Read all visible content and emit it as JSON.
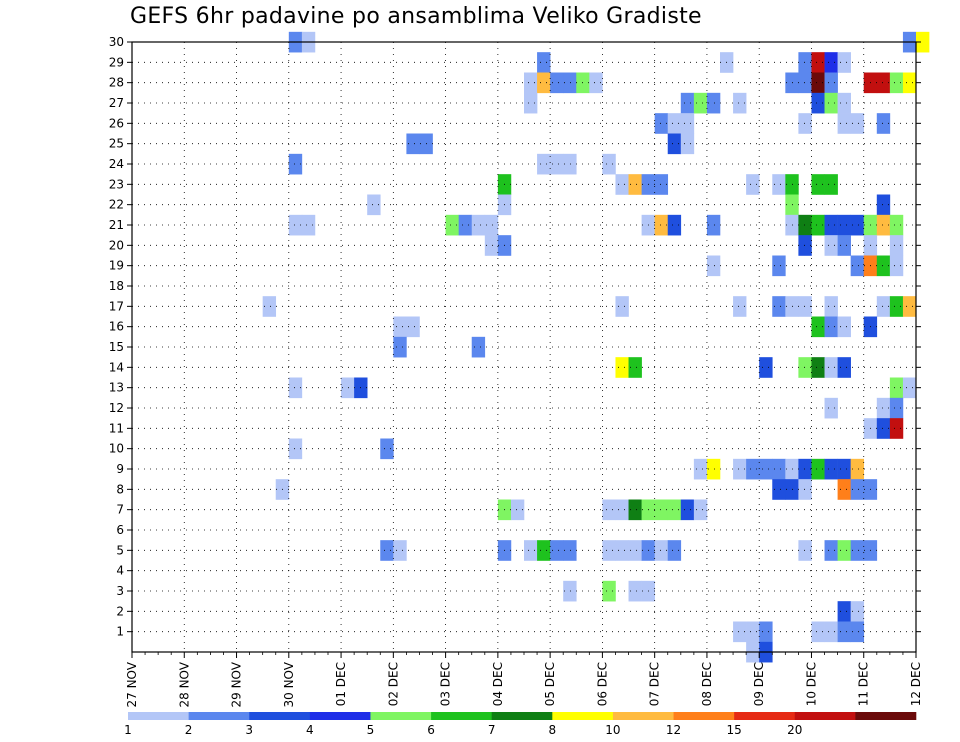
{
  "chart_data": {
    "type": "heatmap",
    "title": "GEFS 6hr padavine po ansamblima Veliko Gradiste",
    "xlabel": "",
    "ylabel": "",
    "y_ticks": [
      "1",
      "2",
      "3",
      "4",
      "5",
      "6",
      "7",
      "8",
      "9",
      "10",
      "11",
      "12",
      "13",
      "14",
      "15",
      "16",
      "17",
      "18",
      "19",
      "20",
      "21",
      "22",
      "23",
      "24",
      "25",
      "26",
      "27",
      "28",
      "29",
      "30"
    ],
    "x_ticks": [
      "27 NOV",
      "28 NOV",
      "29 NOV",
      "30 NOV",
      "01 DEC",
      "02 DEC",
      "03 DEC",
      "04 DEC",
      "05 DEC",
      "06 DEC",
      "07 DEC",
      "08 DEC",
      "09 DEC",
      "10 DEC",
      "11 DEC",
      "12 DEC"
    ],
    "x_ticks_note_unit": "days, 6-hour steps",
    "ylim": [
      0,
      30
    ],
    "grid": true,
    "colorbar": {
      "labels": [
        "1",
        "2",
        "3",
        "4",
        "5",
        "6",
        "7",
        "8",
        "10",
        "12",
        "15",
        "20"
      ],
      "colors": [
        "#b3c6f7",
        "#5b87ee",
        "#1f4fde",
        "#1f2ee8",
        "#7ff562",
        "#1ec21e",
        "#0f7f14",
        "#ffff00",
        "#ffbb40",
        "#ff7f1a",
        "#e62a14",
        "#c20f0f",
        "#6b0a0a"
      ]
    },
    "cells": [
      {
        "ens": 30,
        "day": 3.0,
        "level": 2
      },
      {
        "ens": 30,
        "day": 3.25,
        "level": 1
      },
      {
        "ens": 30,
        "day": 14.75,
        "level": 2
      },
      {
        "ens": 30,
        "day": 15.0,
        "level": 8
      },
      {
        "ens": 29,
        "day": 7.75,
        "level": 2
      },
      {
        "ens": 29,
        "day": 11.25,
        "level": 1
      },
      {
        "ens": 29,
        "day": 12.75,
        "level": 2
      },
      {
        "ens": 29,
        "day": 13.0,
        "level": 12
      },
      {
        "ens": 29,
        "day": 13.25,
        "level": 4
      },
      {
        "ens": 29,
        "day": 13.5,
        "level": 1
      },
      {
        "ens": 28,
        "day": 7.5,
        "level": 1
      },
      {
        "ens": 28,
        "day": 7.75,
        "level": 9
      },
      {
        "ens": 28,
        "day": 8.0,
        "level": 2
      },
      {
        "ens": 28,
        "day": 8.25,
        "level": 2
      },
      {
        "ens": 28,
        "day": 8.5,
        "level": 5
      },
      {
        "ens": 28,
        "day": 8.75,
        "level": 1
      },
      {
        "ens": 28,
        "day": 12.5,
        "level": 2
      },
      {
        "ens": 28,
        "day": 12.75,
        "level": 2
      },
      {
        "ens": 28,
        "day": 13.0,
        "level": 13
      },
      {
        "ens": 28,
        "day": 13.25,
        "level": 2
      },
      {
        "ens": 28,
        "day": 14.0,
        "level": 12
      },
      {
        "ens": 28,
        "day": 14.25,
        "level": 12
      },
      {
        "ens": 28,
        "day": 14.5,
        "level": 5
      },
      {
        "ens": 28,
        "day": 14.75,
        "level": 8
      },
      {
        "ens": 27,
        "day": 7.5,
        "level": 1
      },
      {
        "ens": 27,
        "day": 10.5,
        "level": 2
      },
      {
        "ens": 27,
        "day": 10.75,
        "level": 5
      },
      {
        "ens": 27,
        "day": 11.0,
        "level": 2
      },
      {
        "ens": 27,
        "day": 11.5,
        "level": 1
      },
      {
        "ens": 27,
        "day": 13.0,
        "level": 3
      },
      {
        "ens": 27,
        "day": 13.25,
        "level": 5
      },
      {
        "ens": 27,
        "day": 13.5,
        "level": 1
      },
      {
        "ens": 26,
        "day": 10.0,
        "level": 2
      },
      {
        "ens": 26,
        "day": 10.25,
        "level": 1
      },
      {
        "ens": 26,
        "day": 10.5,
        "level": 1
      },
      {
        "ens": 26,
        "day": 12.75,
        "level": 1
      },
      {
        "ens": 26,
        "day": 13.5,
        "level": 1
      },
      {
        "ens": 26,
        "day": 13.75,
        "level": 1
      },
      {
        "ens": 26,
        "day": 14.25,
        "level": 2
      },
      {
        "ens": 25,
        "day": 5.25,
        "level": 2
      },
      {
        "ens": 25,
        "day": 5.5,
        "level": 2
      },
      {
        "ens": 25,
        "day": 10.25,
        "level": 3
      },
      {
        "ens": 25,
        "day": 10.5,
        "level": 1
      },
      {
        "ens": 24,
        "day": 3.0,
        "level": 2
      },
      {
        "ens": 24,
        "day": 7.75,
        "level": 1
      },
      {
        "ens": 24,
        "day": 8.0,
        "level": 1
      },
      {
        "ens": 24,
        "day": 8.25,
        "level": 1
      },
      {
        "ens": 24,
        "day": 9.0,
        "level": 1
      },
      {
        "ens": 23,
        "day": 7.0,
        "level": 6
      },
      {
        "ens": 23,
        "day": 9.25,
        "level": 1
      },
      {
        "ens": 23,
        "day": 9.5,
        "level": 9
      },
      {
        "ens": 23,
        "day": 9.75,
        "level": 2
      },
      {
        "ens": 23,
        "day": 10.0,
        "level": 2
      },
      {
        "ens": 23,
        "day": 11.75,
        "level": 1
      },
      {
        "ens": 23,
        "day": 12.25,
        "level": 1
      },
      {
        "ens": 23,
        "day": 12.5,
        "level": 6
      },
      {
        "ens": 23,
        "day": 13.0,
        "level": 6
      },
      {
        "ens": 23,
        "day": 13.25,
        "level": 6
      },
      {
        "ens": 22,
        "day": 4.5,
        "level": 1
      },
      {
        "ens": 22,
        "day": 7.0,
        "level": 1
      },
      {
        "ens": 22,
        "day": 12.5,
        "level": 5
      },
      {
        "ens": 22,
        "day": 14.25,
        "level": 3
      },
      {
        "ens": 21,
        "day": 3.0,
        "level": 1
      },
      {
        "ens": 21,
        "day": 3.25,
        "level": 1
      },
      {
        "ens": 21,
        "day": 6.0,
        "level": 5
      },
      {
        "ens": 21,
        "day": 6.25,
        "level": 2
      },
      {
        "ens": 21,
        "day": 6.5,
        "level": 1
      },
      {
        "ens": 21,
        "day": 6.75,
        "level": 1
      },
      {
        "ens": 21,
        "day": 9.75,
        "level": 1
      },
      {
        "ens": 21,
        "day": 10.0,
        "level": 9
      },
      {
        "ens": 21,
        "day": 10.25,
        "level": 3
      },
      {
        "ens": 21,
        "day": 11.0,
        "level": 2
      },
      {
        "ens": 21,
        "day": 12.5,
        "level": 1
      },
      {
        "ens": 21,
        "day": 12.75,
        "level": 7
      },
      {
        "ens": 21,
        "day": 13.0,
        "level": 6
      },
      {
        "ens": 21,
        "day": 13.25,
        "level": 3
      },
      {
        "ens": 21,
        "day": 13.5,
        "level": 3
      },
      {
        "ens": 21,
        "day": 13.75,
        "level": 3
      },
      {
        "ens": 21,
        "day": 14.0,
        "level": 5
      },
      {
        "ens": 21,
        "day": 14.25,
        "level": 9
      },
      {
        "ens": 21,
        "day": 14.5,
        "level": 5
      },
      {
        "ens": 20,
        "day": 6.75,
        "level": 1
      },
      {
        "ens": 20,
        "day": 7.0,
        "level": 2
      },
      {
        "ens": 20,
        "day": 12.75,
        "level": 3
      },
      {
        "ens": 20,
        "day": 13.25,
        "level": 1
      },
      {
        "ens": 20,
        "day": 13.5,
        "level": 2
      },
      {
        "ens": 20,
        "day": 14.0,
        "level": 1
      },
      {
        "ens": 20,
        "day": 14.5,
        "level": 1
      },
      {
        "ens": 19,
        "day": 11.0,
        "level": 1
      },
      {
        "ens": 19,
        "day": 12.25,
        "level": 2
      },
      {
        "ens": 19,
        "day": 13.75,
        "level": 2
      },
      {
        "ens": 19,
        "day": 14.0,
        "level": 10
      },
      {
        "ens": 19,
        "day": 14.25,
        "level": 6
      },
      {
        "ens": 19,
        "day": 14.5,
        "level": 1
      },
      {
        "ens": 17,
        "day": 2.5,
        "level": 1
      },
      {
        "ens": 17,
        "day": 9.25,
        "level": 1
      },
      {
        "ens": 17,
        "day": 11.5,
        "level": 1
      },
      {
        "ens": 17,
        "day": 12.25,
        "level": 2
      },
      {
        "ens": 17,
        "day": 12.5,
        "level": 1
      },
      {
        "ens": 17,
        "day": 12.75,
        "level": 1
      },
      {
        "ens": 17,
        "day": 13.25,
        "level": 1
      },
      {
        "ens": 17,
        "day": 14.25,
        "level": 1
      },
      {
        "ens": 17,
        "day": 14.5,
        "level": 6
      },
      {
        "ens": 17,
        "day": 14.75,
        "level": 9
      },
      {
        "ens": 16,
        "day": 5.0,
        "level": 1
      },
      {
        "ens": 16,
        "day": 5.25,
        "level": 1
      },
      {
        "ens": 16,
        "day": 13.0,
        "level": 6
      },
      {
        "ens": 16,
        "day": 13.25,
        "level": 2
      },
      {
        "ens": 16,
        "day": 13.5,
        "level": 1
      },
      {
        "ens": 16,
        "day": 14.0,
        "level": 3
      },
      {
        "ens": 15,
        "day": 5.0,
        "level": 2
      },
      {
        "ens": 15,
        "day": 6.5,
        "level": 2
      },
      {
        "ens": 14,
        "day": 9.25,
        "level": 8
      },
      {
        "ens": 14,
        "day": 9.5,
        "level": 6
      },
      {
        "ens": 14,
        "day": 12.0,
        "level": 3
      },
      {
        "ens": 14,
        "day": 12.75,
        "level": 5
      },
      {
        "ens": 14,
        "day": 13.0,
        "level": 7
      },
      {
        "ens": 14,
        "day": 13.25,
        "level": 1
      },
      {
        "ens": 14,
        "day": 13.5,
        "level": 3
      },
      {
        "ens": 13,
        "day": 3.0,
        "level": 1
      },
      {
        "ens": 13,
        "day": 4.0,
        "level": 1
      },
      {
        "ens": 13,
        "day": 4.25,
        "level": 3
      },
      {
        "ens": 13,
        "day": 14.5,
        "level": 5
      },
      {
        "ens": 13,
        "day": 14.75,
        "level": 1
      },
      {
        "ens": 12,
        "day": 13.25,
        "level": 1
      },
      {
        "ens": 12,
        "day": 14.25,
        "level": 1
      },
      {
        "ens": 12,
        "day": 14.5,
        "level": 2
      },
      {
        "ens": 11,
        "day": 14.0,
        "level": 1
      },
      {
        "ens": 11,
        "day": 14.25,
        "level": 3
      },
      {
        "ens": 11,
        "day": 14.5,
        "level": 12
      },
      {
        "ens": 10,
        "day": 3.0,
        "level": 1
      },
      {
        "ens": 10,
        "day": 4.75,
        "level": 2
      },
      {
        "ens": 9,
        "day": 10.75,
        "level": 1
      },
      {
        "ens": 9,
        "day": 11.0,
        "level": 8
      },
      {
        "ens": 9,
        "day": 11.5,
        "level": 1
      },
      {
        "ens": 9,
        "day": 11.75,
        "level": 2
      },
      {
        "ens": 9,
        "day": 12.0,
        "level": 2
      },
      {
        "ens": 9,
        "day": 12.25,
        "level": 2
      },
      {
        "ens": 9,
        "day": 12.5,
        "level": 1
      },
      {
        "ens": 9,
        "day": 12.75,
        "level": 3
      },
      {
        "ens": 9,
        "day": 13.0,
        "level": 6
      },
      {
        "ens": 9,
        "day": 13.25,
        "level": 3
      },
      {
        "ens": 9,
        "day": 13.5,
        "level": 3
      },
      {
        "ens": 9,
        "day": 13.75,
        "level": 9
      },
      {
        "ens": 8,
        "day": 2.75,
        "level": 1
      },
      {
        "ens": 8,
        "day": 12.25,
        "level": 3
      },
      {
        "ens": 8,
        "day": 12.5,
        "level": 3
      },
      {
        "ens": 8,
        "day": 12.75,
        "level": 1
      },
      {
        "ens": 8,
        "day": 13.5,
        "level": 10
      },
      {
        "ens": 8,
        "day": 13.75,
        "level": 2
      },
      {
        "ens": 8,
        "day": 14.0,
        "level": 2
      },
      {
        "ens": 7,
        "day": 7.0,
        "level": 5
      },
      {
        "ens": 7,
        "day": 7.25,
        "level": 1
      },
      {
        "ens": 7,
        "day": 9.0,
        "level": 1
      },
      {
        "ens": 7,
        "day": 9.25,
        "level": 1
      },
      {
        "ens": 7,
        "day": 9.5,
        "level": 7
      },
      {
        "ens": 7,
        "day": 9.75,
        "level": 5
      },
      {
        "ens": 7,
        "day": 10.0,
        "level": 5
      },
      {
        "ens": 7,
        "day": 10.25,
        "level": 5
      },
      {
        "ens": 7,
        "day": 10.5,
        "level": 3
      },
      {
        "ens": 7,
        "day": 10.75,
        "level": 1
      },
      {
        "ens": 5,
        "day": 4.75,
        "level": 2
      },
      {
        "ens": 5,
        "day": 5.0,
        "level": 1
      },
      {
        "ens": 5,
        "day": 7.0,
        "level": 2
      },
      {
        "ens": 5,
        "day": 7.5,
        "level": 1
      },
      {
        "ens": 5,
        "day": 7.75,
        "level": 6
      },
      {
        "ens": 5,
        "day": 8.0,
        "level": 2
      },
      {
        "ens": 5,
        "day": 8.25,
        "level": 2
      },
      {
        "ens": 5,
        "day": 9.0,
        "level": 1
      },
      {
        "ens": 5,
        "day": 9.25,
        "level": 1
      },
      {
        "ens": 5,
        "day": 9.5,
        "level": 1
      },
      {
        "ens": 5,
        "day": 9.75,
        "level": 2
      },
      {
        "ens": 5,
        "day": 10.0,
        "level": 1
      },
      {
        "ens": 5,
        "day": 10.25,
        "level": 2
      },
      {
        "ens": 5,
        "day": 12.75,
        "level": 1
      },
      {
        "ens": 5,
        "day": 13.25,
        "level": 2
      },
      {
        "ens": 5,
        "day": 13.5,
        "level": 5
      },
      {
        "ens": 5,
        "day": 13.75,
        "level": 2
      },
      {
        "ens": 5,
        "day": 14.0,
        "level": 2
      },
      {
        "ens": 3,
        "day": 8.25,
        "level": 1
      },
      {
        "ens": 3,
        "day": 9.0,
        "level": 5
      },
      {
        "ens": 3,
        "day": 9.5,
        "level": 1
      },
      {
        "ens": 3,
        "day": 9.75,
        "level": 1
      },
      {
        "ens": 2,
        "day": 13.5,
        "level": 3
      },
      {
        "ens": 2,
        "day": 13.75,
        "level": 1
      },
      {
        "ens": 1,
        "day": 11.5,
        "level": 1
      },
      {
        "ens": 1,
        "day": 11.75,
        "level": 1
      },
      {
        "ens": 1,
        "day": 12.0,
        "level": 2
      },
      {
        "ens": 1,
        "day": 13.0,
        "level": 1
      },
      {
        "ens": 1,
        "day": 13.25,
        "level": 1
      },
      {
        "ens": 1,
        "day": 13.5,
        "level": 2
      },
      {
        "ens": 1,
        "day": 13.75,
        "level": 2
      },
      {
        "ens": 0,
        "day": 11.75,
        "level": 1
      },
      {
        "ens": 0,
        "day": 12.0,
        "level": 3
      }
    ]
  }
}
